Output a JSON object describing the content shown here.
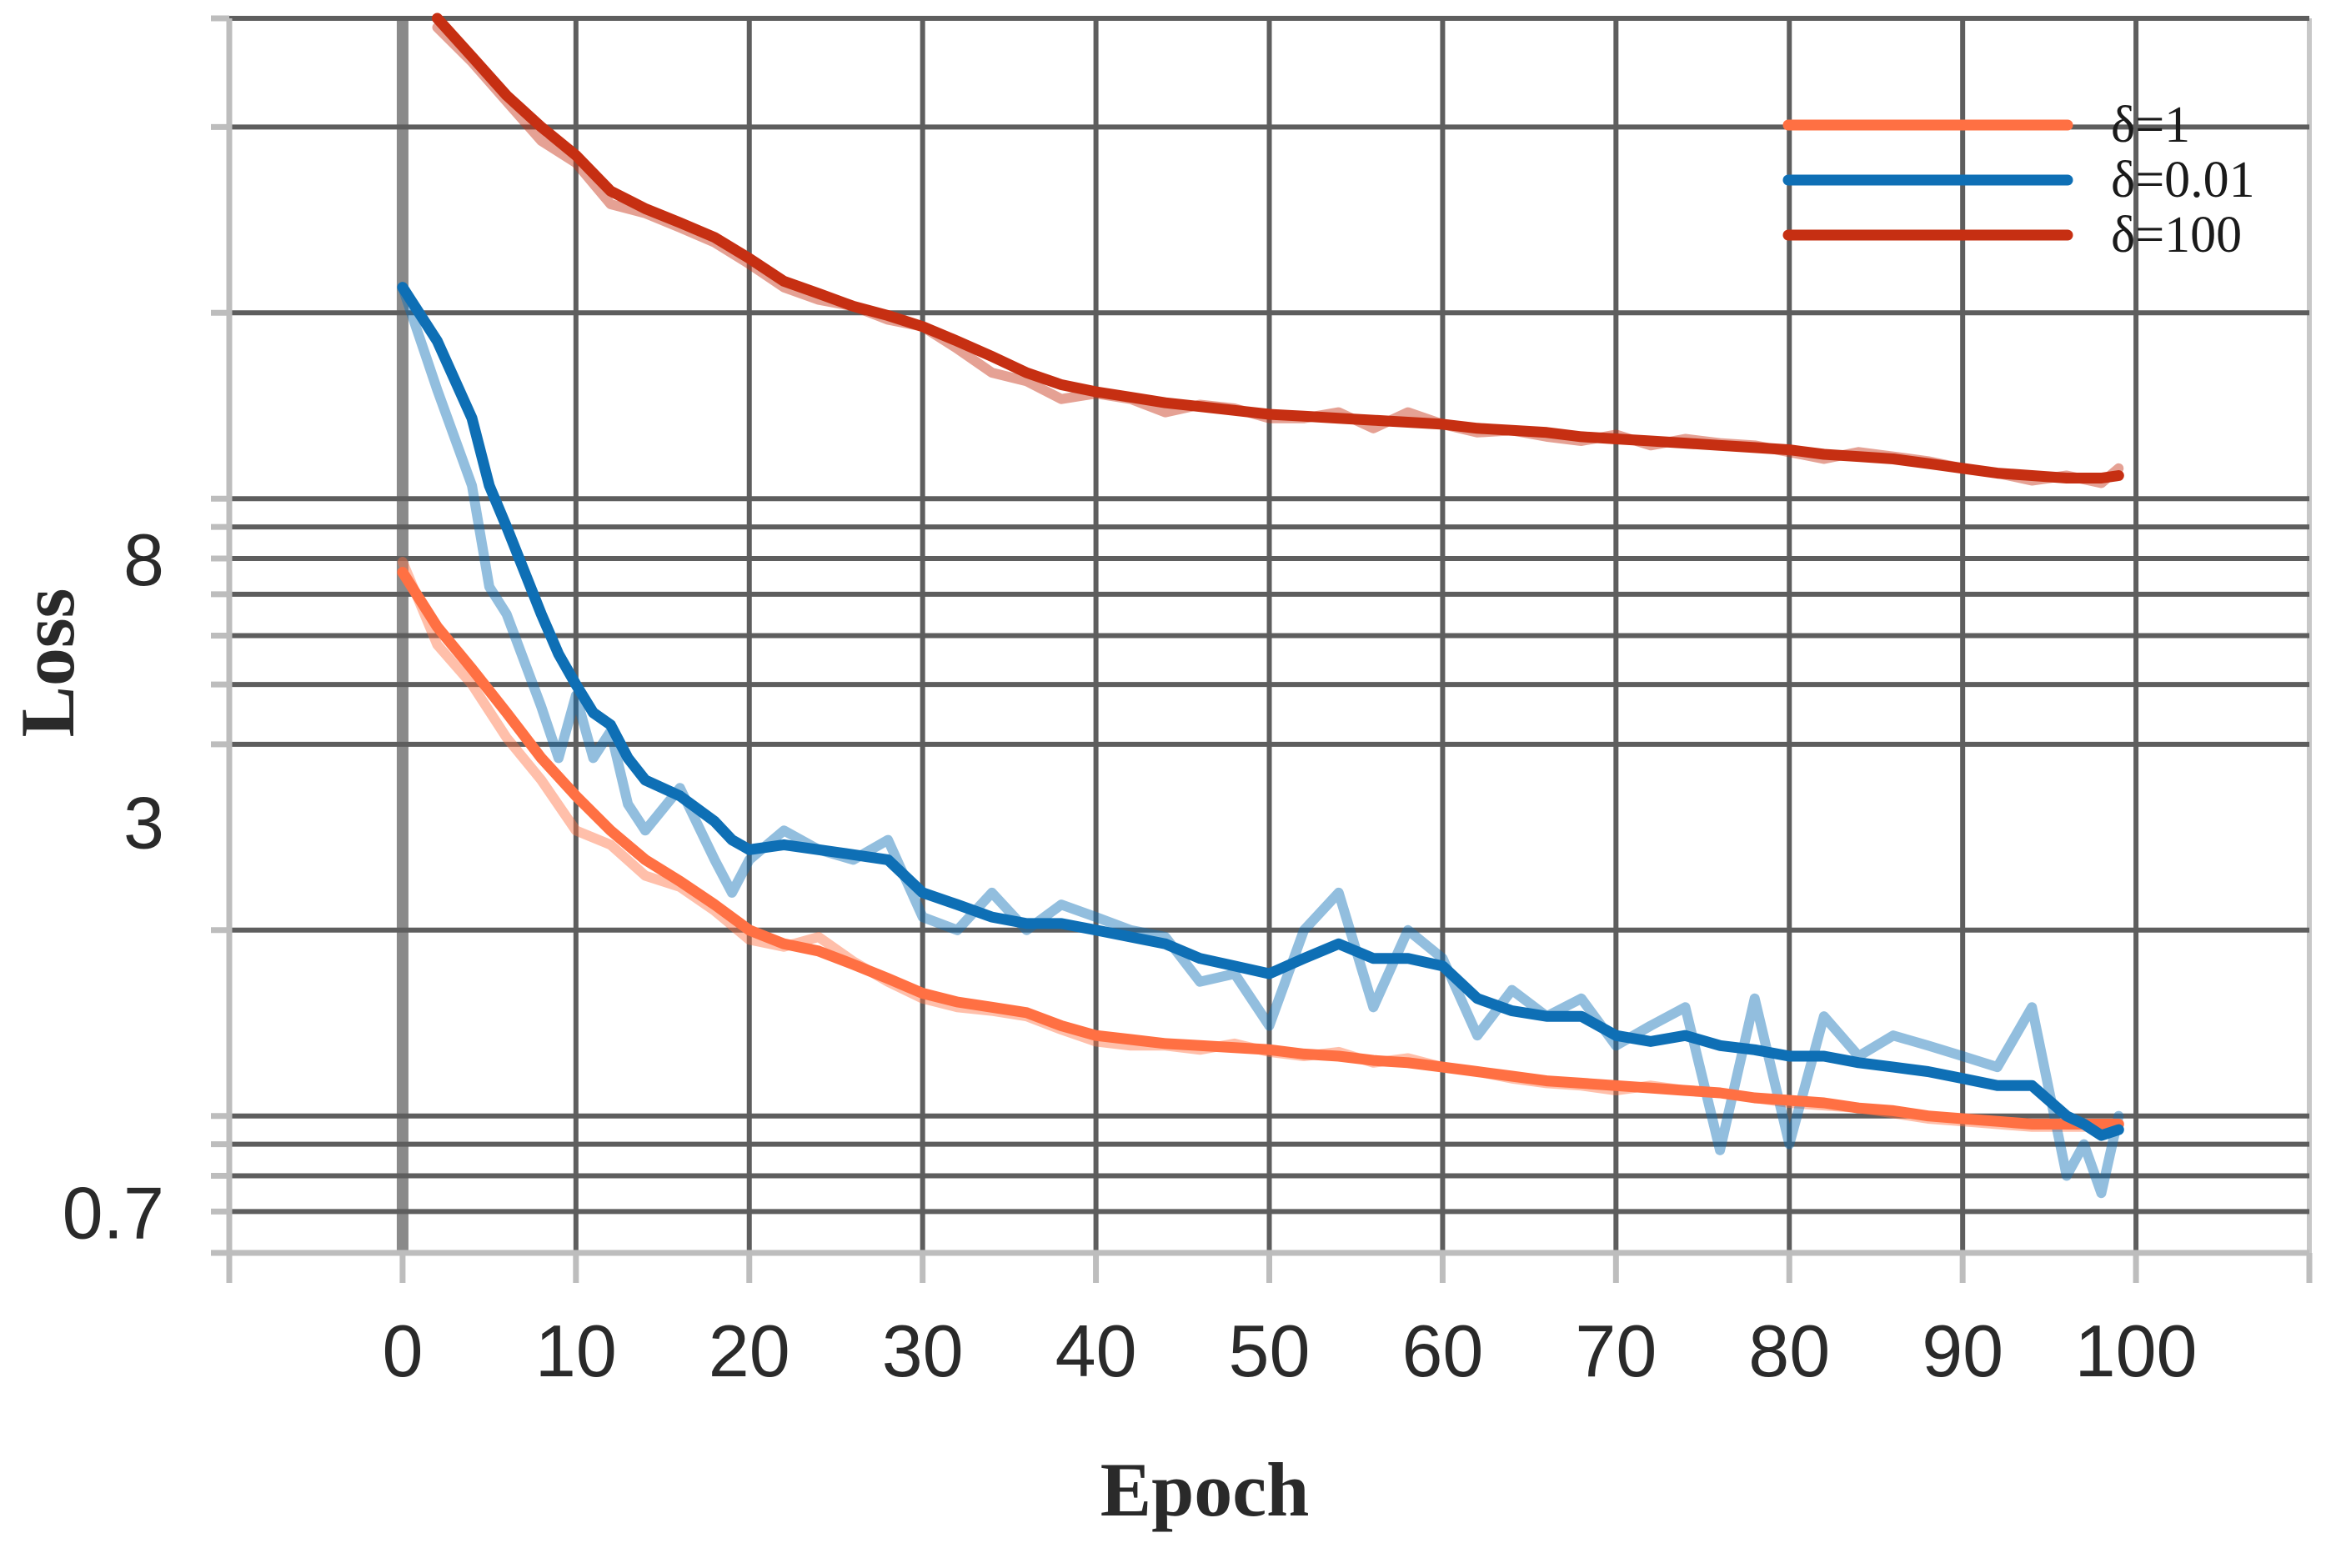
{
  "chart_data": {
    "type": "line",
    "title": "",
    "xlabel": "Epoch",
    "ylabel": "Loss",
    "y_scale": "log",
    "x_ticks": [
      0,
      10,
      20,
      30,
      40,
      50,
      60,
      70,
      80,
      90,
      100
    ],
    "x_tick_labels": [
      "0",
      "10",
      "20",
      "30",
      "40",
      "50",
      "60",
      "70",
      "80",
      "90",
      "100"
    ],
    "y_tick_values": [
      0.7,
      3,
      8
    ],
    "y_tick_labels": [
      "0.7",
      "3",
      "8"
    ],
    "xlim": [
      -10,
      110
    ],
    "ylim": [
      0.6,
      60
    ],
    "grid": true,
    "legend_position": "top-right",
    "series": [
      {
        "name": "δ=1",
        "color": "#ff7043",
        "x": [
          0,
          2,
          4,
          6,
          8,
          10,
          12,
          14,
          16,
          18,
          20,
          22,
          24,
          26,
          28,
          30,
          32,
          34,
          36,
          38,
          40,
          42,
          44,
          46,
          48,
          50,
          52,
          54,
          56,
          58,
          60,
          62,
          64,
          66,
          68,
          70,
          72,
          74,
          76,
          78,
          80,
          82,
          84,
          86,
          88,
          90,
          92,
          94,
          96,
          98,
          99
        ],
        "raw": [
          7.9,
          5.8,
          5.0,
          4.1,
          3.5,
          2.9,
          2.75,
          2.45,
          2.35,
          2.15,
          1.93,
          1.88,
          1.95,
          1.78,
          1.65,
          1.55,
          1.5,
          1.48,
          1.45,
          1.38,
          1.32,
          1.3,
          1.3,
          1.28,
          1.31,
          1.27,
          1.25,
          1.27,
          1.22,
          1.24,
          1.2,
          1.18,
          1.15,
          1.13,
          1.12,
          1.1,
          1.12,
          1.1,
          1.09,
          1.07,
          1.05,
          1.04,
          1.03,
          1.01,
          0.99,
          0.98,
          0.97,
          0.96,
          0.96,
          0.96,
          0.97
        ],
        "smooth": [
          7.6,
          6.2,
          5.3,
          4.5,
          3.8,
          3.3,
          2.9,
          2.6,
          2.4,
          2.2,
          2.0,
          1.9,
          1.85,
          1.76,
          1.67,
          1.58,
          1.53,
          1.5,
          1.47,
          1.4,
          1.35,
          1.33,
          1.31,
          1.3,
          1.29,
          1.28,
          1.26,
          1.25,
          1.23,
          1.22,
          1.2,
          1.18,
          1.16,
          1.14,
          1.13,
          1.12,
          1.11,
          1.1,
          1.09,
          1.07,
          1.06,
          1.05,
          1.03,
          1.02,
          1.0,
          0.99,
          0.98,
          0.97,
          0.97,
          0.97,
          0.97
        ]
      },
      {
        "name": "δ=0.01",
        "color": "#0e6fb5",
        "x": [
          0,
          2,
          4,
          5,
          6,
          8,
          9,
          10,
          11,
          12,
          13,
          14,
          16,
          18,
          19,
          20,
          22,
          24,
          26,
          28,
          30,
          32,
          34,
          36,
          38,
          40,
          42,
          44,
          46,
          48,
          50,
          52,
          54,
          56,
          58,
          60,
          62,
          64,
          66,
          68,
          70,
          72,
          74,
          76,
          78,
          80,
          82,
          84,
          86,
          88,
          90,
          92,
          94,
          96,
          97,
          98,
          99
        ],
        "raw": [
          22.0,
          15.0,
          10.5,
          7.2,
          6.5,
          4.6,
          3.8,
          4.8,
          3.8,
          4.2,
          3.2,
          2.9,
          3.4,
          2.6,
          2.3,
          2.6,
          2.9,
          2.7,
          2.6,
          2.8,
          2.1,
          2.0,
          2.3,
          2.0,
          2.2,
          2.1,
          2.0,
          1.95,
          1.65,
          1.7,
          1.4,
          2.0,
          2.3,
          1.5,
          2.0,
          1.8,
          1.35,
          1.6,
          1.45,
          1.55,
          1.3,
          1.4,
          1.5,
          0.88,
          1.55,
          0.9,
          1.45,
          1.25,
          1.35,
          1.3,
          1.25,
          1.2,
          1.5,
          0.8,
          0.9,
          0.75,
          1.0
        ],
        "smooth": [
          22.0,
          18.0,
          13.5,
          10.5,
          9.0,
          6.5,
          5.6,
          5.0,
          4.5,
          4.3,
          3.8,
          3.5,
          3.3,
          3.0,
          2.8,
          2.7,
          2.75,
          2.7,
          2.65,
          2.6,
          2.3,
          2.2,
          2.1,
          2.05,
          2.05,
          2.0,
          1.95,
          1.9,
          1.8,
          1.75,
          1.7,
          1.8,
          1.9,
          1.8,
          1.8,
          1.75,
          1.55,
          1.48,
          1.45,
          1.45,
          1.35,
          1.32,
          1.35,
          1.3,
          1.28,
          1.25,
          1.25,
          1.22,
          1.2,
          1.18,
          1.15,
          1.12,
          1.12,
          1.0,
          0.97,
          0.93,
          0.95
        ]
      },
      {
        "name": "δ=100",
        "color": "#c62f12",
        "x": [
          2,
          4,
          6,
          8,
          10,
          12,
          14,
          16,
          18,
          20,
          22,
          24,
          26,
          28,
          30,
          32,
          34,
          36,
          38,
          40,
          42,
          44,
          46,
          48,
          50,
          52,
          54,
          56,
          58,
          60,
          62,
          64,
          66,
          68,
          70,
          72,
          74,
          76,
          78,
          80,
          82,
          84,
          86,
          88,
          90,
          92,
          94,
          96,
          98,
          99
        ],
        "raw": [
          58.0,
          51.0,
          44.0,
          38.0,
          35.0,
          30.0,
          29.0,
          27.5,
          26.0,
          24.0,
          22.0,
          21.0,
          20.5,
          19.5,
          19.0,
          17.5,
          16.0,
          15.5,
          14.5,
          14.8,
          14.5,
          13.8,
          14.2,
          14.0,
          13.5,
          13.5,
          13.8,
          13.0,
          13.8,
          13.2,
          12.8,
          12.9,
          12.6,
          12.4,
          12.7,
          12.2,
          12.5,
          12.3,
          12.2,
          11.9,
          11.6,
          11.9,
          11.7,
          11.5,
          11.2,
          11.0,
          10.7,
          10.9,
          10.6,
          11.2
        ],
        "smooth": [
          60.0,
          52.0,
          45.0,
          40.0,
          36.0,
          31.5,
          29.5,
          28.0,
          26.5,
          24.5,
          22.5,
          21.5,
          20.5,
          19.8,
          19.0,
          18.0,
          17.0,
          16.0,
          15.3,
          14.9,
          14.6,
          14.3,
          14.1,
          13.9,
          13.7,
          13.6,
          13.5,
          13.4,
          13.3,
          13.2,
          13.0,
          12.9,
          12.8,
          12.6,
          12.5,
          12.4,
          12.3,
          12.2,
          12.1,
          12.0,
          11.8,
          11.7,
          11.6,
          11.4,
          11.2,
          11.0,
          10.9,
          10.8,
          10.8,
          10.9
        ]
      }
    ]
  }
}
